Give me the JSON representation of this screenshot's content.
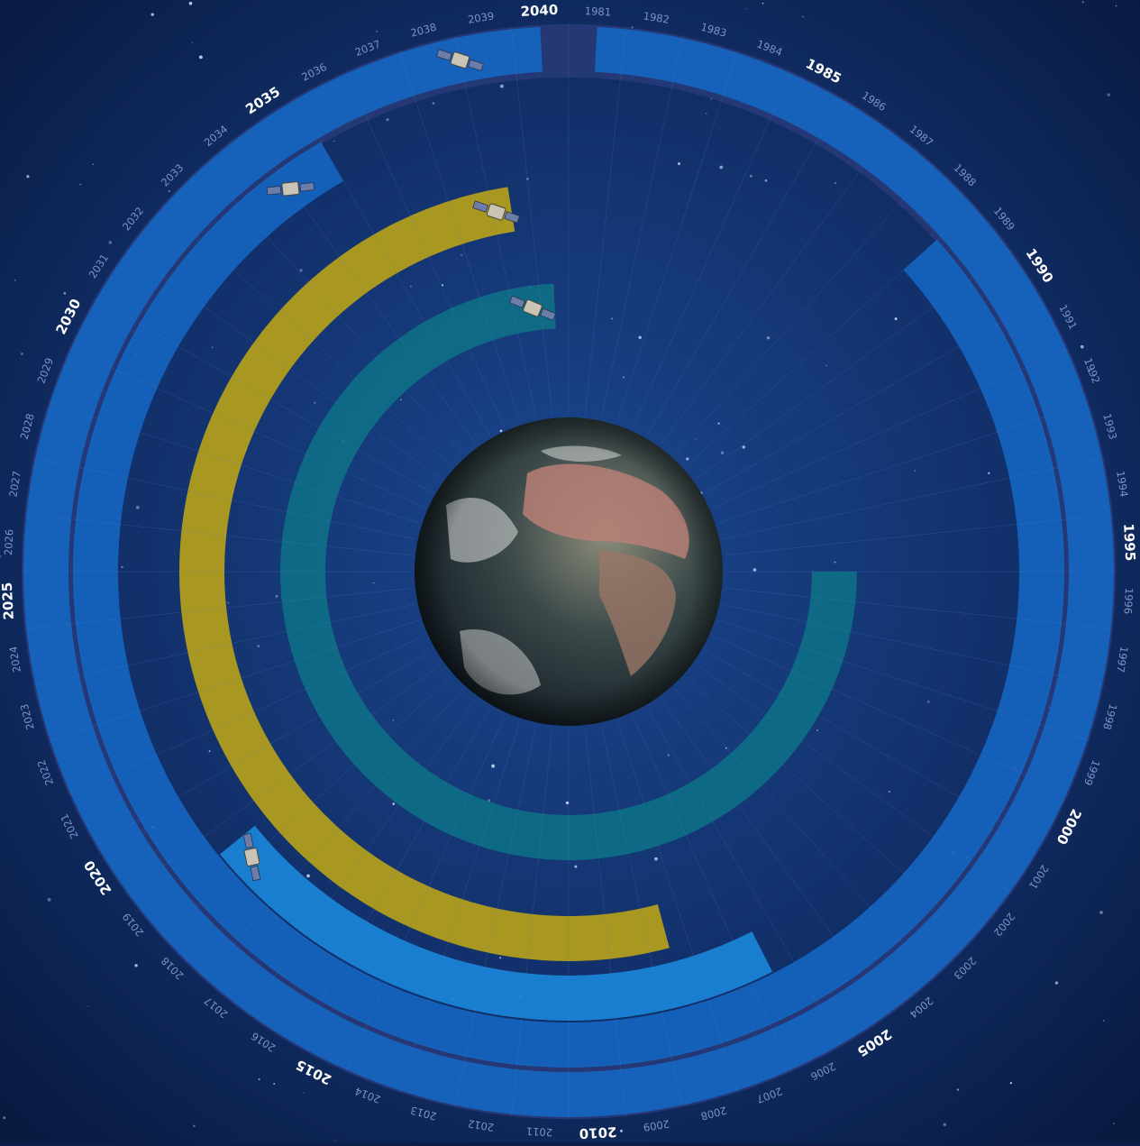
{
  "timeline": {
    "start_year": 1981,
    "end_year": 2040,
    "year_labels": [
      "1981",
      "1982",
      "1983",
      "1984",
      "1985",
      "1986",
      "1987",
      "1988",
      "1989",
      "1990",
      "1991",
      "1992",
      "1993",
      "1994",
      "1995",
      "1996",
      "1997",
      "1998",
      "1999",
      "2000",
      "2001",
      "2002",
      "2003",
      "2004",
      "2005",
      "2006",
      "2007",
      "2008",
      "2009",
      "2010",
      "2011",
      "2012",
      "2013",
      "2014",
      "2015",
      "2016",
      "2017",
      "2018",
      "2019",
      "2020",
      "2021",
      "2022",
      "2023",
      "2024",
      "2025",
      "2026",
      "2027",
      "2028",
      "2029",
      "2030",
      "2031",
      "2032",
      "2033",
      "2034",
      "2035",
      "2036",
      "2037",
      "2038",
      "2039",
      "2040"
    ],
    "major_years": [
      1985,
      1990,
      1995,
      2000,
      2005,
      2010,
      2015,
      2020,
      2025,
      2030,
      2035,
      2040
    ]
  },
  "colors": {
    "background_inner": "#1a3f86",
    "background_outer": "#081a40",
    "outer_track": "#283a78",
    "blue_band": "#1565c0",
    "blue_band_light": "#1a86d8",
    "yellow_band": "#b5a01a",
    "teal_band": "#0e6f86",
    "label_major": "#ffffff",
    "label_minor": "#7f91c4"
  },
  "programmes": [
    {
      "ring": 1,
      "color_key": "blue_band",
      "start_year": 1981,
      "end_year": 2040,
      "satellite_year": 2038.5
    },
    {
      "ring": 2,
      "color_key": "blue_band",
      "start_year": 1988.5,
      "end_year": 2035.5,
      "satellite_year": 2034.5
    },
    {
      "ring": 3,
      "color_key": "blue_band_light",
      "start_year": 2006,
      "end_year": 2019,
      "satellite_year": 2018.5
    },
    {
      "ring": 4,
      "color_key": "yellow_band",
      "start_year": 2008,
      "end_year": 2039,
      "satellite_year": 2038.6
    },
    {
      "ring": 5,
      "color_key": "teal_band",
      "start_year": 1995.5,
      "end_year": 2040,
      "satellite_year": 2039.2
    }
  ],
  "earth": {
    "icon": "earth-globe-icon"
  }
}
